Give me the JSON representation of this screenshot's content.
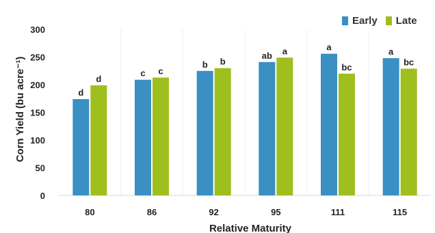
{
  "chart_data": {
    "type": "bar",
    "categories": [
      "80",
      "86",
      "92",
      "95",
      "111",
      "115"
    ],
    "series": [
      {
        "name": "Early",
        "color": "#3a8fc3",
        "values": [
          174,
          209,
          225,
          241,
          256,
          248
        ],
        "labels": [
          "d",
          "c",
          "b",
          "ab",
          "a",
          "a"
        ]
      },
      {
        "name": "Late",
        "color": "#9fbf1f",
        "values": [
          199,
          213,
          230,
          249,
          220,
          229
        ],
        "labels": [
          "d",
          "c",
          "b",
          "a",
          "bc",
          "bc"
        ]
      }
    ],
    "xlabel": "Relative Maturity",
    "ylabel": "Corn Yield (bu acre⁻¹)",
    "ylim": [
      0,
      300
    ],
    "yticks": [
      "0",
      "50",
      "100",
      "150",
      "200",
      "250",
      "300"
    ],
    "grid": false,
    "legend": "top-right"
  }
}
